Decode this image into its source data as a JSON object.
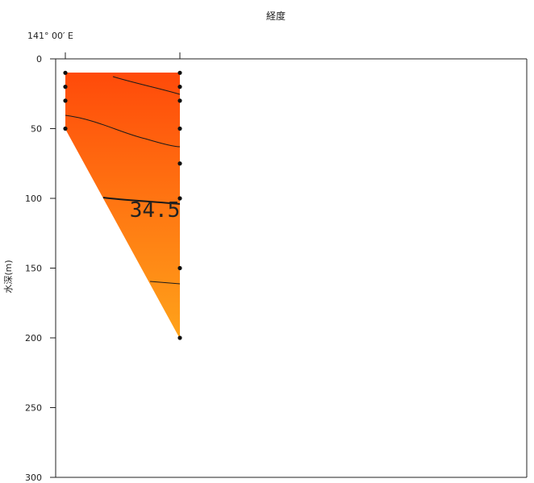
{
  "chart_data": {
    "type": "contour-section",
    "top_axis_label": "経度",
    "longitude_label": "141° 00′ E",
    "ylabel": "水深(m)",
    "ylim": [
      0,
      300
    ],
    "y_ticks": [
      0,
      50,
      100,
      150,
      200,
      250,
      300
    ],
    "stations": [
      {
        "name": "st1",
        "sample_depths": [
          10,
          20,
          30,
          50
        ]
      },
      {
        "name": "st2",
        "sample_depths": [
          10,
          20,
          30,
          50,
          75,
          100,
          150,
          200
        ]
      }
    ],
    "contour_labels": [
      {
        "value": "34.5",
        "depth": 100
      }
    ],
    "colors": {
      "surface": "#ff4a0a",
      "deep": "#ffa31a",
      "contour": "#1a1a1a",
      "axis": "#222222"
    }
  }
}
